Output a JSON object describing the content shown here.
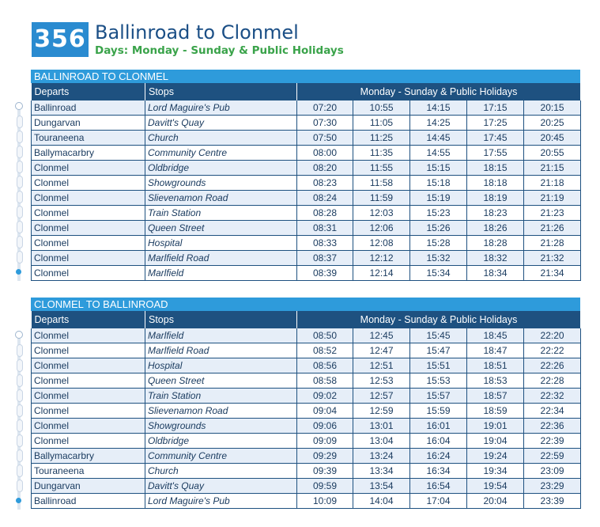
{
  "route": {
    "number": "356",
    "title": "Ballinroad to Clonmel",
    "days": "Days: Monday - Sunday & Public Holidays"
  },
  "colors": {
    "brand_blue": "#2a8bd0",
    "header_navy": "#1e5180",
    "days_green": "#3aa34a",
    "row_tint": "#e6eef8"
  },
  "sections": [
    {
      "title": "BALLINROAD TO CLONMEL",
      "headers": {
        "departs": "Departs",
        "stops": "Stops",
        "days": "Monday - Sunday & Public Holidays"
      },
      "rows": [
        {
          "departs": "Ballinroad",
          "stop": "Lord Maguire's Pub",
          "times": [
            "07:20",
            "10:55",
            "14:15",
            "17:15",
            "20:15"
          ]
        },
        {
          "departs": "Dungarvan",
          "stop": "Davitt's Quay",
          "times": [
            "07:30",
            "11:05",
            "14:25",
            "17:25",
            "20:25"
          ]
        },
        {
          "departs": "Touraneena",
          "stop": "Church",
          "times": [
            "07:50",
            "11:25",
            "14:45",
            "17:45",
            "20:45"
          ]
        },
        {
          "departs": "Ballymacarbry",
          "stop": "Community Centre",
          "times": [
            "08:00",
            "11:35",
            "14:55",
            "17:55",
            "20:55"
          ]
        },
        {
          "departs": "Clonmel",
          "stop": "Oldbridge",
          "times": [
            "08:20",
            "11:55",
            "15:15",
            "18:15",
            "21:15"
          ]
        },
        {
          "departs": "Clonmel",
          "stop": "Showgrounds",
          "times": [
            "08:23",
            "11:58",
            "15:18",
            "18:18",
            "21:18"
          ]
        },
        {
          "departs": "Clonmel",
          "stop": "Slievenamon Road",
          "times": [
            "08:24",
            "11:59",
            "15:19",
            "18:19",
            "21:19"
          ]
        },
        {
          "departs": "Clonmel",
          "stop": "Train Station",
          "times": [
            "08:28",
            "12:03",
            "15:23",
            "18:23",
            "21:23"
          ]
        },
        {
          "departs": "Clonmel",
          "stop": "Queen Street",
          "times": [
            "08:31",
            "12:06",
            "15:26",
            "18:26",
            "21:26"
          ]
        },
        {
          "departs": "Clonmel",
          "stop": "Hospital",
          "times": [
            "08:33",
            "12:08",
            "15:28",
            "18:28",
            "21:28"
          ]
        },
        {
          "departs": "Clonmel",
          "stop": "Marlfield Road",
          "times": [
            "08:37",
            "12:12",
            "15:32",
            "18:32",
            "21:32"
          ]
        },
        {
          "departs": "Clonmel",
          "stop": "Marlfield",
          "times": [
            "08:39",
            "12:14",
            "15:34",
            "18:34",
            "21:34"
          ]
        }
      ]
    },
    {
      "title": "CLONMEL TO BALLINROAD",
      "headers": {
        "departs": "Departs",
        "stops": "Stops",
        "days": "Monday - Sunday & Public Holidays"
      },
      "rows": [
        {
          "departs": "Clonmel",
          "stop": "Marlfield",
          "times": [
            "08:50",
            "12:45",
            "15:45",
            "18:45",
            "22:20"
          ]
        },
        {
          "departs": "Clonmel",
          "stop": "Marlfield Road",
          "times": [
            "08:52",
            "12:47",
            "15:47",
            "18:47",
            "22:22"
          ]
        },
        {
          "departs": "Clonmel",
          "stop": "Hospital",
          "times": [
            "08:56",
            "12:51",
            "15:51",
            "18:51",
            "22:26"
          ]
        },
        {
          "departs": "Clonmel",
          "stop": "Queen Street",
          "times": [
            "08:58",
            "12:53",
            "15:53",
            "18:53",
            "22:28"
          ]
        },
        {
          "departs": "Clonmel",
          "stop": "Train Station",
          "times": [
            "09:02",
            "12:57",
            "15:57",
            "18:57",
            "22:32"
          ]
        },
        {
          "departs": "Clonmel",
          "stop": "Slievenamon Road",
          "times": [
            "09:04",
            "12:59",
            "15:59",
            "18:59",
            "22:34"
          ]
        },
        {
          "departs": "Clonmel",
          "stop": "Showgrounds",
          "times": [
            "09:06",
            "13:01",
            "16:01",
            "19:01",
            "22:36"
          ]
        },
        {
          "departs": "Clonmel",
          "stop": "Oldbridge",
          "times": [
            "09:09",
            "13:04",
            "16:04",
            "19:04",
            "22:39"
          ]
        },
        {
          "departs": "Ballymacarbry",
          "stop": "Community Centre",
          "times": [
            "09:29",
            "13:24",
            "16:24",
            "19:24",
            "22:59"
          ]
        },
        {
          "departs": "Touraneena",
          "stop": "Church",
          "times": [
            "09:39",
            "13:34",
            "16:34",
            "19:34",
            "23:09"
          ]
        },
        {
          "departs": "Dungarvan",
          "stop": "Davitt's Quay",
          "times": [
            "09:59",
            "13:54",
            "16:54",
            "19:54",
            "23:29"
          ]
        },
        {
          "departs": "Ballinroad",
          "stop": "Lord Maguire's Pub",
          "times": [
            "10:09",
            "14:04",
            "17:04",
            "20:04",
            "23:39"
          ]
        }
      ]
    }
  ]
}
